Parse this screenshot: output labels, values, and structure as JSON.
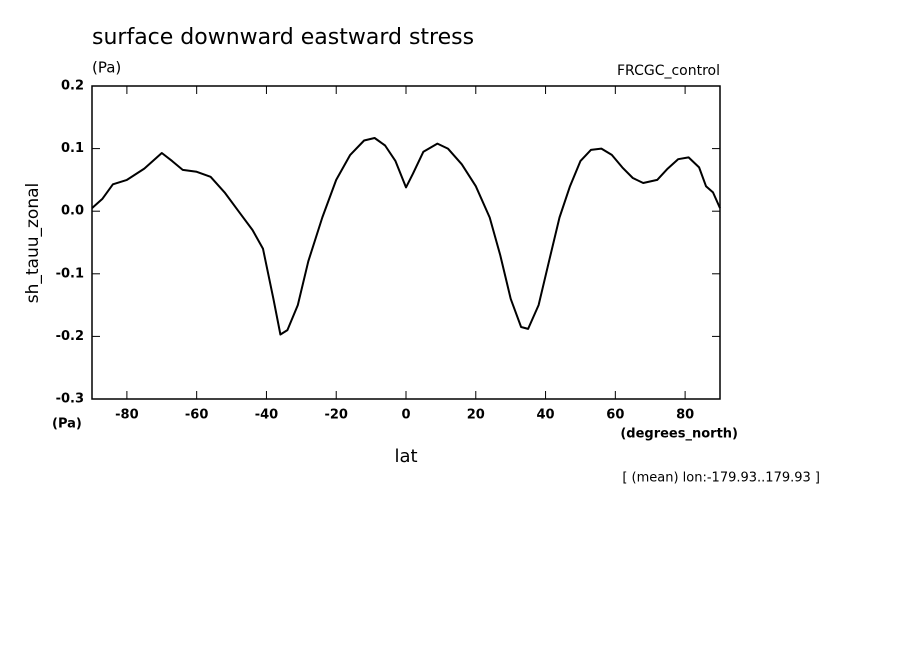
{
  "chart_data": {
    "type": "line",
    "title": "surface downward eastward stress",
    "units_top": "(Pa)",
    "dataset": "FRCGC_control",
    "y_label": "sh_tauu_zonal",
    "y_units": "(Pa)",
    "x_label": "lat",
    "x_units": "(degrees_north)",
    "footnote": "[ (mean) lon:-179.93..179.93 ]",
    "xlim": [
      -90,
      90
    ],
    "xticks": [
      -80,
      -60,
      -40,
      -20,
      0,
      20,
      40,
      60,
      80
    ],
    "ylim": [
      -0.3,
      0.2
    ],
    "yticks": [
      -0.3,
      -0.2,
      -0.1,
      {
        "value": 0,
        "label": "0.0"
      },
      0.1,
      0.2
    ],
    "series": [
      {
        "color": "#000000",
        "x": [
          -90,
          -87,
          -84,
          -80,
          -75,
          -70,
          -67,
          -64,
          -60,
          -56,
          -52,
          -48,
          -44,
          -41,
          -38,
          -36,
          -34,
          -31,
          -28,
          -24,
          -20,
          -16,
          -12,
          -9,
          -6,
          -3,
          0,
          2,
          5,
          9,
          12,
          16,
          20,
          24,
          27,
          30,
          33,
          35,
          38,
          41,
          44,
          47,
          50,
          53,
          56,
          59,
          62,
          65,
          68,
          72,
          75,
          78,
          81,
          84,
          86,
          88,
          90
        ],
        "values": [
          0.005,
          0.02,
          0.043,
          0.05,
          0.068,
          0.093,
          0.08,
          0.066,
          0.063,
          0.055,
          0.03,
          0.0,
          -0.03,
          -0.06,
          -0.14,
          -0.197,
          -0.19,
          -0.15,
          -0.08,
          -0.01,
          0.05,
          0.09,
          0.113,
          0.117,
          0.105,
          0.08,
          0.038,
          0.06,
          0.095,
          0.108,
          0.1,
          0.075,
          0.04,
          -0.01,
          -0.07,
          -0.14,
          -0.185,
          -0.188,
          -0.15,
          -0.08,
          -0.01,
          0.04,
          0.08,
          0.098,
          0.1,
          0.09,
          0.07,
          0.053,
          0.045,
          0.05,
          0.068,
          0.083,
          0.086,
          0.07,
          0.04,
          0.03,
          0.005
        ]
      }
    ]
  }
}
